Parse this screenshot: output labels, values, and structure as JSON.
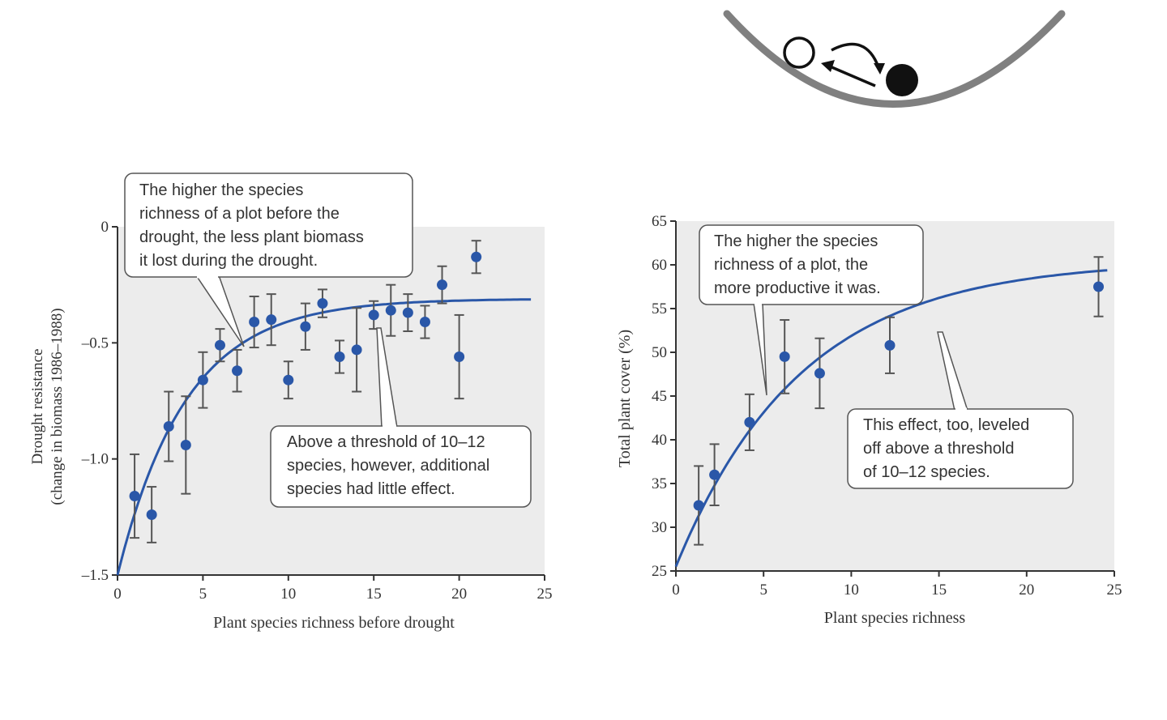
{
  "colors": {
    "marker": "#2a57a8",
    "curve": "#2a57a8",
    "plot_bg": "#ececec",
    "error_bar": "#555555",
    "bowl": "#808080"
  },
  "chart_data": [
    {
      "type": "scatter",
      "xlabel": "Plant species richness before drought",
      "ylabel_line1": "Drought resistance",
      "ylabel_line2": "(change in biomass 1986–1988)",
      "xlim": [
        0,
        25
      ],
      "ylim": [
        -1.5,
        0
      ],
      "xticks": [
        0,
        5,
        10,
        15,
        20,
        25
      ],
      "yticks": [
        0,
        -0.5,
        -1.0,
        -1.5
      ],
      "ytick_labels": [
        "0",
        "–0.5",
        "–1.0",
        "–1.5"
      ],
      "grid": false,
      "points": [
        {
          "x": 1,
          "y": -1.16,
          "err": 0.18
        },
        {
          "x": 2,
          "y": -1.24,
          "err": 0.12
        },
        {
          "x": 3,
          "y": -0.86,
          "err": 0.15
        },
        {
          "x": 4,
          "y": -0.94,
          "err": 0.21
        },
        {
          "x": 5,
          "y": -0.66,
          "err": 0.12
        },
        {
          "x": 6,
          "y": -0.51,
          "err": 0.07
        },
        {
          "x": 7,
          "y": -0.62,
          "err": 0.09
        },
        {
          "x": 8,
          "y": -0.41,
          "err": 0.11
        },
        {
          "x": 9,
          "y": -0.4,
          "err": 0.11
        },
        {
          "x": 10,
          "y": -0.66,
          "err": 0.08
        },
        {
          "x": 11,
          "y": -0.43,
          "err": 0.1
        },
        {
          "x": 12,
          "y": -0.33,
          "err": 0.06
        },
        {
          "x": 13,
          "y": -0.56,
          "err": 0.07
        },
        {
          "x": 14,
          "y": -0.53,
          "err": 0.18
        },
        {
          "x": 15,
          "y": -0.38,
          "err": 0.06
        },
        {
          "x": 16,
          "y": -0.36,
          "err": 0.11
        },
        {
          "x": 17,
          "y": -0.37,
          "err": 0.08
        },
        {
          "x": 18,
          "y": -0.41,
          "err": 0.07
        },
        {
          "x": 19,
          "y": -0.25,
          "err": 0.08
        },
        {
          "x": 20,
          "y": -0.56,
          "err": 0.18
        },
        {
          "x": 21,
          "y": -0.13,
          "err": 0.07
        }
      ],
      "fit": {
        "asymptote": -0.31,
        "start": -1.5,
        "rate": 0.25,
        "x_end": 24.2
      },
      "callouts": [
        {
          "lines": [
            "The higher the species",
            "richness of a plot before the",
            "drought, the less plant biomass",
            "it lost during the drought."
          ]
        },
        {
          "lines": [
            "Above a threshold of 10–12",
            "species, however, additional",
            "species had little effect."
          ]
        }
      ]
    },
    {
      "type": "scatter",
      "xlabel": "Plant species richness",
      "ylabel": "Total plant cover (%)",
      "xlim": [
        0,
        25
      ],
      "ylim": [
        25,
        65
      ],
      "xticks": [
        0,
        5,
        10,
        15,
        20,
        25
      ],
      "yticks": [
        25,
        30,
        35,
        40,
        45,
        50,
        55,
        60,
        65
      ],
      "ytick_labels": [
        "25",
        "30",
        "35",
        "40",
        "45",
        "50",
        "55",
        "60",
        "65"
      ],
      "grid": false,
      "points": [
        {
          "x": 1.3,
          "y": 32.5,
          "err": 4.5
        },
        {
          "x": 2.2,
          "y": 36.0,
          "err": 3.5
        },
        {
          "x": 4.2,
          "y": 42.0,
          "err": 3.2
        },
        {
          "x": 6.2,
          "y": 49.5,
          "err": 4.2
        },
        {
          "x": 8.2,
          "y": 47.6,
          "err": 4.0
        },
        {
          "x": 12.2,
          "y": 50.8,
          "err": 3.2
        },
        {
          "x": 24.1,
          "y": 57.5,
          "err": 3.4
        }
      ],
      "fit": {
        "asymptote": 60.5,
        "start": 25.5,
        "rate": 0.14,
        "x_end": 24.6
      },
      "callouts": [
        {
          "lines": [
            "The higher the species",
            "richness of a plot, the",
            "more productive it was."
          ]
        },
        {
          "lines": [
            "This effect, too, leveled",
            "off above a threshold",
            "of 10–12 species."
          ]
        }
      ]
    }
  ]
}
